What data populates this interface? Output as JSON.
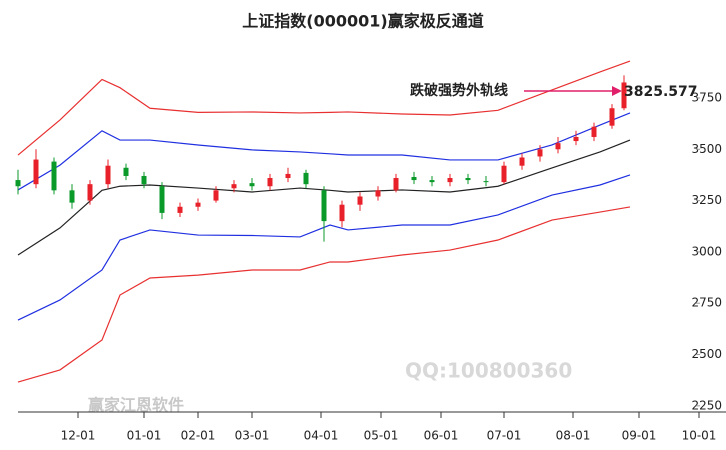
{
  "chart_data": {
    "type": "candlestick",
    "title": "上证指数(000001)赢家极反通道",
    "annotation": "跌破强势外轨线",
    "last_close": 3825.577,
    "watermarks": [
      "QQ:100800360",
      "赢家江恩软件"
    ],
    "ylim": [
      2220,
      3935
    ],
    "yticks": [
      2250,
      2500,
      2750,
      3000,
      3250,
      3500,
      3750
    ],
    "xlim": [
      0,
      229
    ],
    "xticks": [
      {
        "value": 20,
        "label": "12-01"
      },
      {
        "value": 42,
        "label": "01-01"
      },
      {
        "value": 60,
        "label": "02-01"
      },
      {
        "value": 78,
        "label": "03-01"
      },
      {
        "value": 101,
        "label": "04-01"
      },
      {
        "value": 121,
        "label": "05-01"
      },
      {
        "value": 141,
        "label": "06-01"
      },
      {
        "value": 162,
        "label": "07-01"
      },
      {
        "value": 185,
        "label": "08-01"
      },
      {
        "value": 207,
        "label": "09-01"
      },
      {
        "value": 227,
        "label": "10-01"
      }
    ],
    "up_color": "#e8202a",
    "down_color": "#0a9a2a",
    "candles": {
      "x": [
        0,
        6,
        12,
        18,
        24,
        30,
        36,
        42,
        48,
        54,
        60,
        66,
        72,
        78,
        84,
        90,
        96,
        102,
        108,
        114,
        120,
        126,
        132,
        138,
        144,
        150,
        156,
        162,
        168,
        174,
        180,
        186,
        192,
        198,
        202
      ],
      "open": [
        3350,
        3330,
        3440,
        3300,
        3250,
        3330,
        3410,
        3370,
        3320,
        3190,
        3220,
        3250,
        3310,
        3335,
        3320,
        3360,
        3385,
        3300,
        3150,
        3230,
        3270,
        3300,
        3365,
        3350,
        3340,
        3360,
        3345,
        3340,
        3420,
        3465,
        3500,
        3540,
        3560,
        3615,
        3700
      ],
      "high": [
        3400,
        3500,
        3460,
        3330,
        3350,
        3450,
        3430,
        3390,
        3340,
        3240,
        3260,
        3320,
        3350,
        3360,
        3380,
        3410,
        3400,
        3320,
        3250,
        3290,
        3320,
        3380,
        3390,
        3370,
        3380,
        3380,
        3370,
        3440,
        3480,
        3520,
        3560,
        3590,
        3630,
        3720,
        3860
      ],
      "low": [
        3280,
        3310,
        3280,
        3210,
        3230,
        3310,
        3350,
        3310,
        3160,
        3170,
        3200,
        3240,
        3290,
        3300,
        3300,
        3340,
        3310,
        3050,
        3120,
        3200,
        3250,
        3290,
        3330,
        3320,
        3320,
        3330,
        3320,
        3330,
        3400,
        3440,
        3480,
        3520,
        3540,
        3600,
        3690
      ],
      "close": [
        3320,
        3450,
        3300,
        3240,
        3330,
        3420,
        3370,
        3330,
        3190,
        3220,
        3240,
        3300,
        3330,
        3320,
        3360,
        3380,
        3330,
        3150,
        3230,
        3270,
        3300,
        3360,
        3350,
        3340,
        3360,
        3350,
        3340,
        3420,
        3460,
        3500,
        3530,
        3560,
        3610,
        3700,
        3825.577
      ]
    },
    "bands": {
      "x": [
        0,
        14,
        28,
        34,
        44,
        60,
        78,
        94,
        104,
        110,
        128,
        144,
        160,
        178,
        194,
        204
      ],
      "series": [
        {
          "color": "#e83030",
          "values": [
            3472,
            3643,
            3840,
            3800,
            3700,
            3680,
            3682,
            3677,
            3680,
            3682,
            3672,
            3667,
            3690,
            3789,
            3877,
            3930
          ]
        },
        {
          "color": "#2030e0",
          "values": [
            3302,
            3423,
            3590,
            3545,
            3545,
            3521,
            3497,
            3487,
            3478,
            3472,
            3472,
            3448,
            3448,
            3521,
            3618,
            3677
          ]
        },
        {
          "color": "#222222",
          "values": [
            2985,
            3117,
            3300,
            3320,
            3326,
            3311,
            3292,
            3311,
            3300,
            3292,
            3302,
            3292,
            3320,
            3409,
            3487,
            3545
          ]
        },
        {
          "color": "#2030e0",
          "values": [
            2668,
            2766,
            2912,
            3058,
            3107,
            3082,
            3080,
            3073,
            3131,
            3107,
            3131,
            3131,
            3180,
            3277,
            3326,
            3375
          ]
        },
        {
          "color": "#e83030",
          "values": [
            2366,
            2425,
            2571,
            2790,
            2873,
            2887,
            2912,
            2912,
            2951,
            2951,
            2985,
            3009,
            3058,
            3155,
            3194,
            3219
          ]
        }
      ]
    },
    "annotation_color": "#e0206a"
  }
}
